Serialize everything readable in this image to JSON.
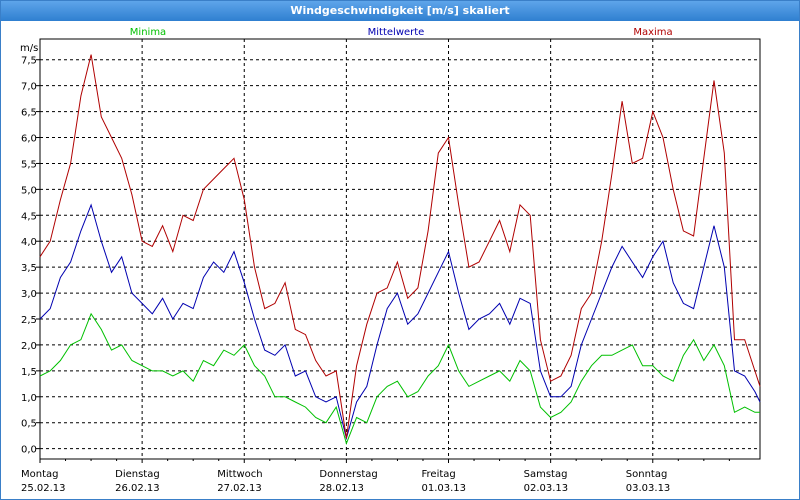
{
  "window": {
    "title": "Windgeschwindigkeit [m/s] skaliert"
  },
  "chart_data": {
    "type": "line",
    "title": "Windgeschwindigkeit [m/s] skaliert",
    "ylabel": "m/s",
    "ylim": [
      -0.2,
      7.9
    ],
    "yticks": [
      "0,0",
      "0,5",
      "1,0",
      "1,5",
      "2,0",
      "2,5",
      "3,0",
      "3,5",
      "4,0",
      "4,5",
      "5,0",
      "5,5",
      "6,0",
      "6,5",
      "7,0",
      "7,5"
    ],
    "ytick_values": [
      0,
      0.5,
      1,
      1.5,
      2,
      2.5,
      3,
      3.5,
      4,
      4.5,
      5,
      5.5,
      6,
      6.5,
      7,
      7.5
    ],
    "days": [
      {
        "name": "Montag",
        "date": "25.02.13"
      },
      {
        "name": "Dienstag",
        "date": "26.02.13"
      },
      {
        "name": "Mittwoch",
        "date": "27.02.13"
      },
      {
        "name": "Donnerstag",
        "date": "28.02.13"
      },
      {
        "name": "Freitag",
        "date": "01.03.13"
      },
      {
        "name": "Samstag",
        "date": "02.03.13"
      },
      {
        "name": "Sonntag",
        "date": "03.03.13"
      }
    ],
    "xlim_days": [
      0,
      7.05
    ],
    "grid": true,
    "series": [
      {
        "name": "Minima",
        "color": "#00c000",
        "x": [
          0,
          0.1,
          0.2,
          0.3,
          0.4,
          0.5,
          0.6,
          0.7,
          0.8,
          0.9,
          1.0,
          1.1,
          1.2,
          1.3,
          1.4,
          1.5,
          1.6,
          1.7,
          1.8,
          1.9,
          2.0,
          2.1,
          2.2,
          2.3,
          2.4,
          2.5,
          2.6,
          2.7,
          2.8,
          2.9,
          3.0,
          3.1,
          3.2,
          3.3,
          3.4,
          3.5,
          3.6,
          3.7,
          3.8,
          3.9,
          4.0,
          4.1,
          4.2,
          4.3,
          4.4,
          4.5,
          4.6,
          4.7,
          4.8,
          4.9,
          5.0,
          5.1,
          5.2,
          5.3,
          5.4,
          5.5,
          5.6,
          5.7,
          5.8,
          5.9,
          6.0,
          6.1,
          6.2,
          6.3,
          6.4,
          6.5,
          6.6,
          6.7,
          6.8,
          6.9,
          7.0,
          7.05
        ],
        "values": [
          1.4,
          1.5,
          1.7,
          2.0,
          2.1,
          2.6,
          2.3,
          1.9,
          2.0,
          1.7,
          1.6,
          1.5,
          1.5,
          1.4,
          1.5,
          1.3,
          1.7,
          1.6,
          1.9,
          1.8,
          2.0,
          1.6,
          1.4,
          1.0,
          1.0,
          0.9,
          0.8,
          0.6,
          0.5,
          0.8,
          0.1,
          0.6,
          0.5,
          1.0,
          1.2,
          1.3,
          1.0,
          1.1,
          1.4,
          1.6,
          2.0,
          1.5,
          1.2,
          1.3,
          1.4,
          1.5,
          1.3,
          1.7,
          1.5,
          0.8,
          0.6,
          0.7,
          0.9,
          1.3,
          1.6,
          1.8,
          1.8,
          1.9,
          2.0,
          1.6,
          1.6,
          1.4,
          1.3,
          1.8,
          2.1,
          1.7,
          2.0,
          1.6,
          0.7,
          0.8,
          0.7,
          0.7
        ]
      },
      {
        "name": "Mittelwerte",
        "color": "#0000b0",
        "x": [
          0,
          0.1,
          0.2,
          0.3,
          0.4,
          0.5,
          0.6,
          0.7,
          0.8,
          0.9,
          1.0,
          1.1,
          1.2,
          1.3,
          1.4,
          1.5,
          1.6,
          1.7,
          1.8,
          1.9,
          2.0,
          2.1,
          2.2,
          2.3,
          2.4,
          2.5,
          2.6,
          2.7,
          2.8,
          2.9,
          3.0,
          3.1,
          3.2,
          3.3,
          3.4,
          3.5,
          3.6,
          3.7,
          3.8,
          3.9,
          4.0,
          4.1,
          4.2,
          4.3,
          4.4,
          4.5,
          4.6,
          4.7,
          4.8,
          4.9,
          5.0,
          5.1,
          5.2,
          5.3,
          5.4,
          5.5,
          5.6,
          5.7,
          5.8,
          5.9,
          6.0,
          6.1,
          6.2,
          6.3,
          6.4,
          6.5,
          6.6,
          6.7,
          6.8,
          6.9,
          7.0,
          7.05
        ],
        "values": [
          2.5,
          2.7,
          3.3,
          3.6,
          4.2,
          4.7,
          4.0,
          3.4,
          3.7,
          3.0,
          2.8,
          2.6,
          2.9,
          2.5,
          2.8,
          2.7,
          3.3,
          3.6,
          3.4,
          3.8,
          3.2,
          2.5,
          1.9,
          1.8,
          2.0,
          1.4,
          1.5,
          1.0,
          0.9,
          1.0,
          0.2,
          0.9,
          1.2,
          2.0,
          2.7,
          3.0,
          2.4,
          2.6,
          3.0,
          3.4,
          3.8,
          3.0,
          2.3,
          2.5,
          2.6,
          2.8,
          2.4,
          2.9,
          2.8,
          1.5,
          1.0,
          1.0,
          1.2,
          2.0,
          2.5,
          3.0,
          3.5,
          3.9,
          3.6,
          3.3,
          3.7,
          4.0,
          3.2,
          2.8,
          2.7,
          3.5,
          4.3,
          3.5,
          1.5,
          1.4,
          1.1,
          0.9
        ]
      },
      {
        "name": "Maxima",
        "color": "#b00000",
        "x": [
          0,
          0.1,
          0.2,
          0.3,
          0.4,
          0.5,
          0.6,
          0.7,
          0.8,
          0.9,
          1.0,
          1.1,
          1.2,
          1.3,
          1.4,
          1.5,
          1.6,
          1.7,
          1.8,
          1.9,
          2.0,
          2.1,
          2.2,
          2.3,
          2.4,
          2.5,
          2.6,
          2.7,
          2.8,
          2.9,
          3.0,
          3.1,
          3.2,
          3.3,
          3.4,
          3.5,
          3.6,
          3.7,
          3.8,
          3.9,
          4.0,
          4.1,
          4.2,
          4.3,
          4.4,
          4.5,
          4.6,
          4.7,
          4.8,
          4.9,
          5.0,
          5.1,
          5.2,
          5.3,
          5.4,
          5.5,
          5.6,
          5.7,
          5.8,
          5.9,
          6.0,
          6.1,
          6.2,
          6.3,
          6.4,
          6.5,
          6.6,
          6.7,
          6.8,
          6.9,
          7.0,
          7.05
        ],
        "values": [
          3.7,
          4.0,
          4.8,
          5.5,
          6.8,
          7.6,
          6.4,
          6.0,
          5.6,
          4.9,
          4.0,
          3.9,
          4.3,
          3.8,
          4.5,
          4.4,
          5.0,
          5.2,
          5.4,
          5.6,
          4.8,
          3.5,
          2.7,
          2.8,
          3.2,
          2.3,
          2.2,
          1.7,
          1.4,
          1.5,
          0.2,
          1.6,
          2.4,
          3.0,
          3.1,
          3.6,
          2.9,
          3.1,
          4.2,
          5.7,
          6.0,
          4.7,
          3.5,
          3.6,
          4.0,
          4.4,
          3.8,
          4.7,
          4.5,
          2.1,
          1.3,
          1.4,
          1.8,
          2.7,
          3.0,
          4.0,
          5.3,
          6.7,
          5.5,
          5.6,
          6.5,
          6.0,
          5.0,
          4.2,
          4.1,
          5.6,
          7.1,
          5.7,
          2.1,
          2.1,
          1.5,
          1.2
        ]
      }
    ]
  }
}
